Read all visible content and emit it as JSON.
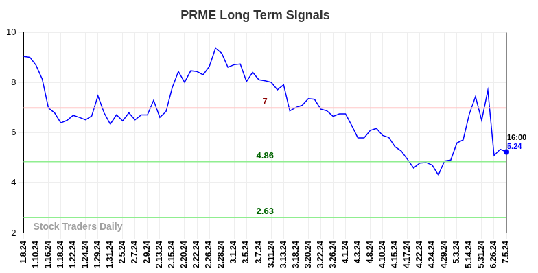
{
  "chart_data": {
    "type": "line",
    "title": "PRME Long Term Signals",
    "categories": [
      "1.8.24",
      null,
      "1.10.24",
      null,
      "1.16.24",
      null,
      "1.18.24",
      null,
      "1.22.24",
      null,
      "1.24.24",
      null,
      "1.29.24",
      null,
      "1.31.24",
      null,
      "2.5.24",
      null,
      "2.7.24",
      null,
      "2.9.24",
      null,
      "2.13.24",
      null,
      "2.15.24",
      null,
      "2.20.24",
      null,
      "2.22.24",
      null,
      "2.26.24",
      null,
      "2.28.24",
      null,
      "3.1.24",
      null,
      "3.5.24",
      null,
      "3.7.24",
      null,
      "3.11.24",
      null,
      "3.13.24",
      null,
      "3.18.24",
      null,
      "3.20.24",
      null,
      "3.22.24",
      null,
      "3.26.24",
      null,
      "4.1.24",
      null,
      "4.3.24",
      null,
      "4.8.24",
      null,
      "4.10.24",
      null,
      "4.15.24",
      null,
      "4.17.24",
      null,
      "4.22.24",
      null,
      "4.24.24",
      null,
      "4.29.24",
      null,
      "5.3.24",
      null,
      "5.14.24",
      null,
      "5.31.24",
      null,
      "6.26.24",
      null,
      "7.5.24"
    ],
    "values": [
      9.05,
      9.02,
      8.7,
      8.15,
      7.0,
      6.8,
      6.4,
      6.5,
      6.7,
      6.62,
      6.52,
      6.68,
      7.48,
      6.8,
      6.35,
      6.72,
      6.48,
      6.8,
      6.52,
      6.72,
      6.72,
      7.3,
      6.62,
      6.85,
      7.8,
      8.45,
      8.02,
      8.48,
      8.45,
      8.32,
      8.65,
      9.38,
      9.18,
      8.62,
      8.72,
      8.75,
      8.05,
      8.42,
      8.12,
      8.08,
      8.02,
      7.72,
      7.92,
      6.88,
      7.02,
      7.1,
      7.37,
      7.34,
      6.95,
      6.88,
      6.66,
      6.76,
      6.76,
      6.3,
      5.8,
      5.8,
      6.1,
      6.18,
      5.9,
      5.82,
      5.45,
      5.28,
      4.95,
      4.6,
      4.8,
      4.82,
      4.72,
      4.32,
      4.88,
      4.92,
      5.6,
      5.72,
      6.75,
      7.45,
      6.5,
      7.7,
      5.1,
      5.35,
      5.24
    ],
    "color": "#0000ff",
    "ylim": [
      2,
      10
    ],
    "yticks": [
      2,
      4,
      6,
      8,
      10
    ],
    "grid": true,
    "annotations": [
      {
        "value": 7,
        "label": "7",
        "color": "#ffc8c8",
        "label_color": "#8b0000"
      },
      {
        "value": 4.86,
        "label": "4.86",
        "color": "#90ee90",
        "label_color": "#006400"
      },
      {
        "value": 2.63,
        "label": "2.63",
        "color": "#90ee90",
        "label_color": "#006400"
      }
    ],
    "last_point_labels": [
      "16:00",
      "5.24"
    ],
    "watermark": "Stock Traders Daily"
  }
}
